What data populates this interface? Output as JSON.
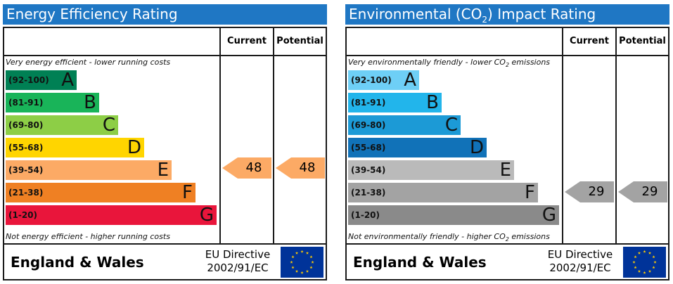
{
  "energy": {
    "title": "Energy Efficiency Rating",
    "col_current": "Current",
    "col_potential": "Potential",
    "top_note": "Very energy efficient - lower running costs",
    "bottom_note": "Not energy efficient - higher running costs",
    "bands": [
      {
        "range": "(92-100)",
        "letter": "A",
        "color": "#008054"
      },
      {
        "range": "(81-91)",
        "letter": "B",
        "color": "#19b459"
      },
      {
        "range": "(69-80)",
        "letter": "C",
        "color": "#8dce46"
      },
      {
        "range": "(55-68)",
        "letter": "D",
        "color": "#ffd500"
      },
      {
        "range": "(39-54)",
        "letter": "E",
        "color": "#fcaa65"
      },
      {
        "range": "(21-38)",
        "letter": "F",
        "color": "#ef8023"
      },
      {
        "range": "(1-20)",
        "letter": "G",
        "color": "#e9153b"
      }
    ],
    "current": "48",
    "potential": "48",
    "arrow_color": "#fcaa65",
    "footer": "England & Wales",
    "directive_line1": "EU Directive",
    "directive_line2": "2002/91/EC"
  },
  "environmental": {
    "title_prefix": "Environmental (CO",
    "title_sub": "2",
    "title_suffix": ") Impact Rating",
    "col_current": "Current",
    "col_potential": "Potential",
    "top_note_prefix": "Very environmentally friendly - lower CO",
    "top_note_sub": "2",
    "top_note_suffix": " emissions",
    "bottom_note_prefix": "Not environmentally friendly - higher CO",
    "bottom_note_sub": "2",
    "bottom_note_suffix": " emissions",
    "bands": [
      {
        "range": "(92-100)",
        "letter": "A",
        "color": "#6ecff6"
      },
      {
        "range": "(81-91)",
        "letter": "B",
        "color": "#22b5eb"
      },
      {
        "range": "(69-80)",
        "letter": "C",
        "color": "#1c9ad6"
      },
      {
        "range": "(55-68)",
        "letter": "D",
        "color": "#1172b8"
      },
      {
        "range": "(39-54)",
        "letter": "E",
        "color": "#bababa"
      },
      {
        "range": "(21-38)",
        "letter": "F",
        "color": "#a3a3a3"
      },
      {
        "range": "(1-20)",
        "letter": "G",
        "color": "#8a8a8a"
      }
    ],
    "current": "29",
    "potential": "29",
    "arrow_color": "#a3a3a3",
    "footer": "England & Wales",
    "directive_line1": "EU Directive",
    "directive_line2": "2002/91/EC"
  }
}
